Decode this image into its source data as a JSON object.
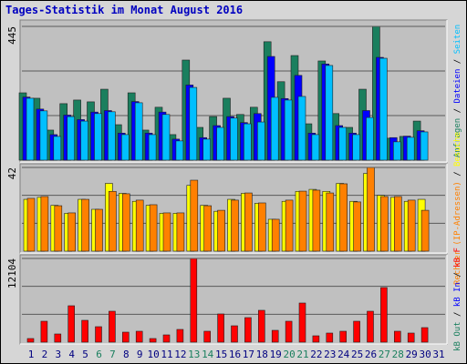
{
  "chart_data": [
    {
      "type": "bar",
      "title": "Tages-Statistik im Monat August 2016",
      "ylim": [
        0,
        445
      ],
      "yticks": [
        445
      ],
      "separator": " / ",
      "series": [
        {
          "name": "Anfragen",
          "color": "#1a7f5e",
          "values": [
            224,
            206,
            100,
            188,
            200,
            194,
            236,
            118,
            224,
            100,
            176,
            85,
            333,
            109,
            145,
            206,
            152,
            176,
            394,
            261,
            348,
            121,
            330,
            155,
            109,
            236,
            445,
            73,
            79,
            130,
            null
          ]
        },
        {
          "name": "Dateien",
          "color": "#0000ff",
          "values": [
            210,
            170,
            85,
            150,
            135,
            160,
            165,
            90,
            195,
            90,
            160,
            70,
            250,
            75,
            115,
            145,
            125,
            155,
            345,
            205,
            282,
            90,
            320,
            115,
            90,
            165,
            342,
            75,
            80,
            98,
            null
          ]
        },
        {
          "name": "Seiten",
          "color": "#00bfff",
          "values": [
            206,
            164,
            79,
            145,
            130,
            155,
            161,
            85,
            191,
            85,
            152,
            64,
            242,
            70,
            109,
            140,
            121,
            127,
            209,
            200,
            212,
            85,
            315,
            109,
            85,
            142,
            339,
            61,
            76,
            94,
            null
          ]
        }
      ]
    },
    {
      "type": "bar",
      "ylim": [
        0,
        42
      ],
      "yticks": [
        42
      ],
      "separator": " / ",
      "series": [
        {
          "name": "Besuche",
          "color": "#ffff00",
          "values": [
            26,
            27,
            23,
            19,
            26,
            21,
            34,
            29,
            25,
            23,
            19,
            19,
            33,
            23,
            20,
            26,
            29,
            24,
            16,
            25,
            30,
            31,
            30,
            34,
            25,
            39,
            28,
            27,
            25,
            26,
            null
          ]
        },
        {
          "name": "Rechner (IP-Adressen)",
          "color": "#ff8000",
          "values": [
            26.5,
            27.4,
            22.8,
            19.2,
            26,
            21,
            30,
            28.8,
            25.6,
            23.3,
            19.2,
            19.2,
            35.6,
            22.8,
            20.5,
            25.6,
            29.2,
            24.2,
            16,
            25.6,
            30.1,
            30.6,
            29.2,
            33.8,
            24.7,
            42,
            27.4,
            27.4,
            25.6,
            20.5,
            null
          ]
        }
      ]
    },
    {
      "type": "bar",
      "ylim": [
        0,
        12104
      ],
      "yticks": [
        12104
      ],
      "separator": " / ",
      "categories": [
        "1",
        "2",
        "3",
        "4",
        "5",
        "6",
        "7",
        "8",
        "9",
        "10",
        "11",
        "12",
        "13",
        "14",
        "15",
        "16",
        "17",
        "18",
        "19",
        "20",
        "21",
        "22",
        "23",
        "24",
        "25",
        "26",
        "27",
        "28",
        "29",
        "30",
        "31"
      ],
      "category_colors": [
        "#000080",
        "#000080",
        "#000080",
        "#000080",
        "#000080",
        "#1a7f5e",
        "#1a7f5e",
        "#000080",
        "#000080",
        "#000080",
        "#000080",
        "#000080",
        "#1a7f5e",
        "#1a7f5e",
        "#000080",
        "#000080",
        "#000080",
        "#000080",
        "#000080",
        "#1a7f5e",
        "#1a7f5e",
        "#000080",
        "#000080",
        "#000080",
        "#000080",
        "#000080",
        "#1a7f5e",
        "#1a7f5e",
        "#000080",
        "#000080",
        "#000080"
      ],
      "series": [
        {
          "name": "kB F",
          "color": "#ff0000",
          "values": [
            526,
            3026,
            1184,
            5263,
            3158,
            2237,
            4473,
            1447,
            1579,
            526,
            1052,
            1842,
            12104,
            1579,
            4079,
            2368,
            3552,
            4605,
            1710,
            3026,
            5657,
            921,
            1316,
            1579,
            3026,
            4473,
            7894,
            1579,
            1316,
            2105,
            null
          ]
        }
      ],
      "legend_extra": [
        {
          "name": "kB In",
          "color": "#0000ff"
        },
        {
          "name": "kB Out",
          "color": "#1a7f5e"
        }
      ]
    }
  ]
}
